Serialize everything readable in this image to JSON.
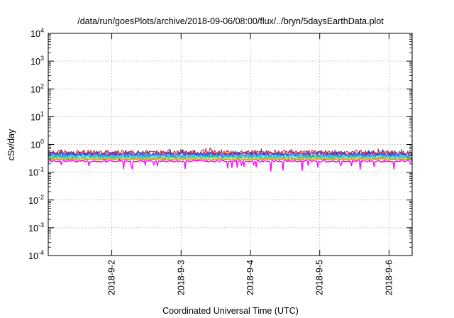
{
  "chart_data": {
    "type": "line",
    "title": "/data/run/goesPlots/archive/2018-09-06/08:00/flux/../bryn/5daysEarthData.plot",
    "xlabel": "Coordinated Universal Time (UTC)",
    "ylabel": "cSv/day",
    "yscale": "log",
    "ylim": [
      0.0001,
      10000
    ],
    "y_ticks": [
      {
        "base": "10",
        "exp": "-4",
        "value": 0.0001
      },
      {
        "base": "10",
        "exp": "-3",
        "value": 0.001
      },
      {
        "base": "10",
        "exp": "-2",
        "value": 0.01
      },
      {
        "base": "10",
        "exp": "-1",
        "value": 0.1
      },
      {
        "base": "10",
        "exp": "0",
        "value": 1
      },
      {
        "base": "10",
        "exp": "1",
        "value": 10
      },
      {
        "base": "10",
        "exp": "2",
        "value": 100
      },
      {
        "base": "10",
        "exp": "3",
        "value": 1000
      },
      {
        "base": "10",
        "exp": "4",
        "value": 10000
      }
    ],
    "xlim": [
      "2018-09-01 02:00",
      "2018-09-06 08:00"
    ],
    "x_ticks": [
      "2018-9-2",
      "2018-9-3",
      "2018-9-4",
      "2018-9-5",
      "2018-9-6"
    ],
    "grid": true,
    "legend": "none",
    "series": [
      {
        "color": "#e0202a",
        "base": 0.52,
        "spread": 0.3
      },
      {
        "color": "#6a2ea0",
        "base": 0.47,
        "spread": 0.25
      },
      {
        "color": "#1a3fd8",
        "base": 0.43,
        "spread": 0.22
      },
      {
        "color": "#1e90e8",
        "base": 0.4,
        "spread": 0.18
      },
      {
        "color": "#20c8d8",
        "base": 0.37,
        "spread": 0.12
      },
      {
        "color": "#22c040",
        "base": 0.34,
        "spread": 0.1
      },
      {
        "color": "#c8c020",
        "base": 0.31,
        "spread": 0.08
      },
      {
        "color": "#e07820",
        "base": 0.29,
        "spread": 0.08
      },
      {
        "color": "#ff00ff",
        "base": 0.25,
        "spread": 0.1,
        "dips": true
      }
    ]
  }
}
